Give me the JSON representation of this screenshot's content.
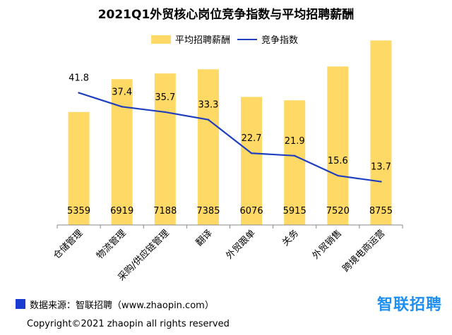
{
  "chart_data": {
    "type": "bar",
    "title": "2021Q1外贸核心岗位竞争指数与平均招聘薪酬",
    "categories": [
      "仓储管理",
      "物流管理",
      "采购/供应链管理",
      "翻译",
      "外贸跟单",
      "关务",
      "外贸销售",
      "跨境电商运营"
    ],
    "series": [
      {
        "name": "平均招聘薪酬",
        "type": "bar",
        "axis": "left",
        "color": "#ffd966",
        "values": [
          5359,
          6919,
          7188,
          7385,
          6076,
          5915,
          7520,
          8755
        ]
      },
      {
        "name": "竞争指数",
        "type": "line",
        "axis": "right",
        "color": "#1f3fbf",
        "values": [
          41.8,
          37.4,
          35.7,
          33.3,
          22.7,
          21.9,
          15.6,
          13.7
        ]
      }
    ],
    "legend": [
      "平均招聘薪酬",
      "竞争指数"
    ],
    "legend_position": "top",
    "ylim_left": [
      0,
      9000
    ],
    "ylim_right": [
      0,
      60
    ],
    "grid": false
  },
  "footer": {
    "source": "数据来源：智联招聘（www.zhaopin.com）",
    "brand": "智联招聘",
    "copyright": "Copyright©2021 zhaopin all rights reserved"
  }
}
